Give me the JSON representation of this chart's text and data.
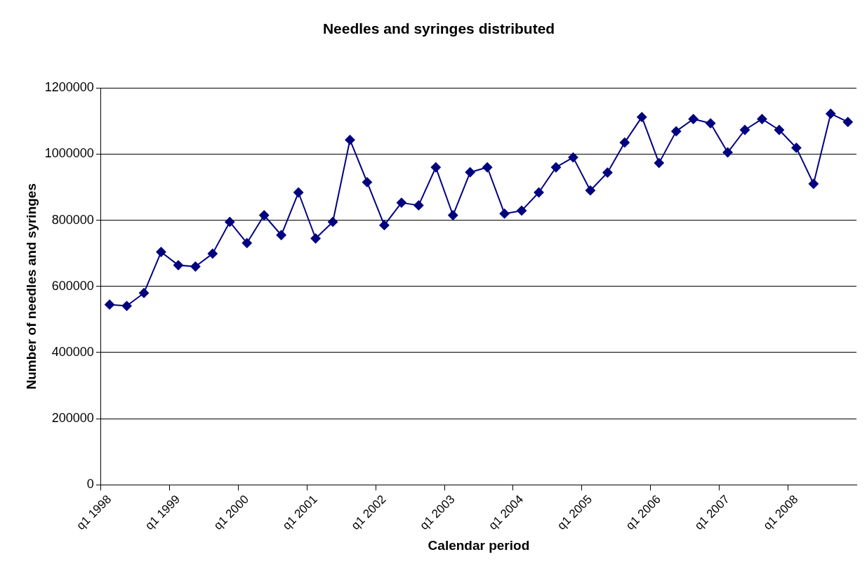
{
  "chart_data": {
    "type": "line",
    "title": "Needles and syringes distributed",
    "xlabel": "Calendar period",
    "ylabel": "Number of needles and syringes",
    "categories": [
      "q1 1998",
      null,
      null,
      null,
      "q1 1999",
      null,
      null,
      null,
      "q1 2000",
      null,
      null,
      null,
      "q1 2001",
      null,
      null,
      null,
      "q1 2002",
      null,
      null,
      null,
      "q1 2003",
      null,
      null,
      null,
      "q1 2004",
      null,
      null,
      null,
      "q1 2005",
      null,
      null,
      null,
      "q1 2006",
      null,
      null,
      null,
      "q1 2007",
      null,
      null,
      null,
      "q1 2008",
      null,
      null,
      null
    ],
    "series": [
      {
        "color": "#000080",
        "values": [
          545000,
          541000,
          580000,
          704000,
          664000,
          660000,
          699000,
          795000,
          731000,
          815000,
          755000,
          884000,
          745000,
          795000,
          1043000,
          915000,
          785000,
          853000,
          845000,
          960000,
          815000,
          945000,
          960000,
          820000,
          829000,
          884000,
          960000,
          990000,
          890000,
          944000,
          1035000,
          1112000,
          973000,
          1069000,
          1106000,
          1093000,
          1005000,
          1073000,
          1106000,
          1073000,
          1019000,
          910000,
          1122000,
          1097000
        ]
      }
    ],
    "ylim": [
      0,
      1200000
    ],
    "yticks": [
      0,
      200000,
      400000,
      600000,
      800000,
      1000000,
      1200000
    ],
    "grid": "y",
    "legend": false,
    "marker": "diamond",
    "line_style": "solid"
  }
}
